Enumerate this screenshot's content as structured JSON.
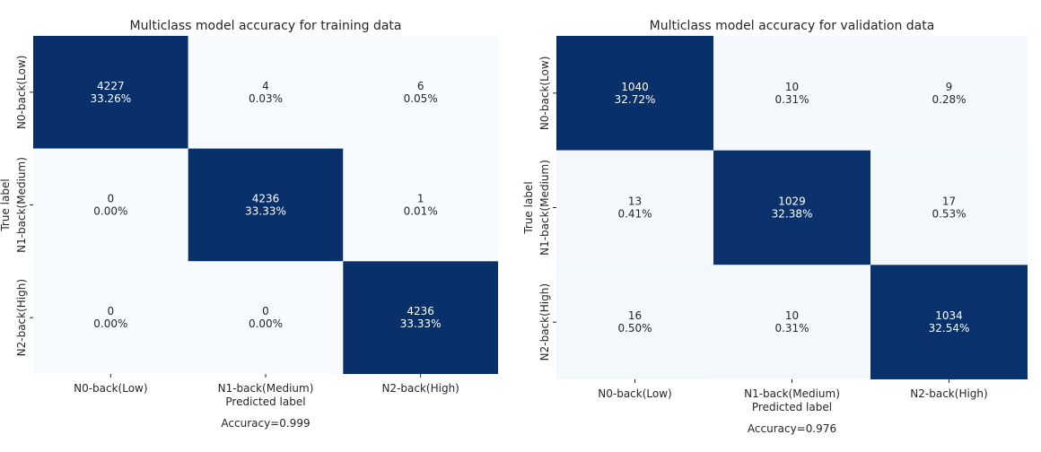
{
  "chart_data": [
    {
      "type": "heatmap",
      "title": "Multiclass model accuracy for training data",
      "xlabel": "Predicted label",
      "ylabel": "True label",
      "x_categories": [
        "N0-back(Low)",
        "N1-back(Medium)",
        "N2-back(High)"
      ],
      "y_categories": [
        "N0-back(Low)",
        "N1-back(Medium)",
        "N2-back(High)"
      ],
      "values": [
        [
          4227,
          4,
          6
        ],
        [
          0,
          4236,
          1
        ],
        [
          0,
          0,
          4236
        ]
      ],
      "percent_labels": [
        [
          "33.26%",
          "0.03%",
          "0.05%"
        ],
        [
          "0.00%",
          "33.33%",
          "0.01%"
        ],
        [
          "0.00%",
          "0.00%",
          "33.33%"
        ]
      ],
      "footer": "Accuracy=0.999",
      "colormap": "Blues",
      "colorbar": false
    },
    {
      "type": "heatmap",
      "title": "Multiclass model accuracy for validation data",
      "xlabel": "Predicted label",
      "ylabel": "True label",
      "x_categories": [
        "N0-back(Low)",
        "N1-back(Medium)",
        "N2-back(High)"
      ],
      "y_categories": [
        "N0-back(Low)",
        "N1-back(Medium)",
        "N2-back(High)"
      ],
      "values": [
        [
          1040,
          10,
          9
        ],
        [
          13,
          1029,
          17
        ],
        [
          16,
          10,
          1034
        ]
      ],
      "percent_labels": [
        [
          "32.72%",
          "0.31%",
          "0.28%"
        ],
        [
          "0.41%",
          "32.38%",
          "0.53%"
        ],
        [
          "0.50%",
          "0.31%",
          "32.54%"
        ]
      ],
      "footer": "Accuracy=0.976",
      "colormap": "Blues",
      "colorbar": false
    }
  ],
  "colors": {
    "high": "#08306b",
    "low": "#f7fbff"
  }
}
